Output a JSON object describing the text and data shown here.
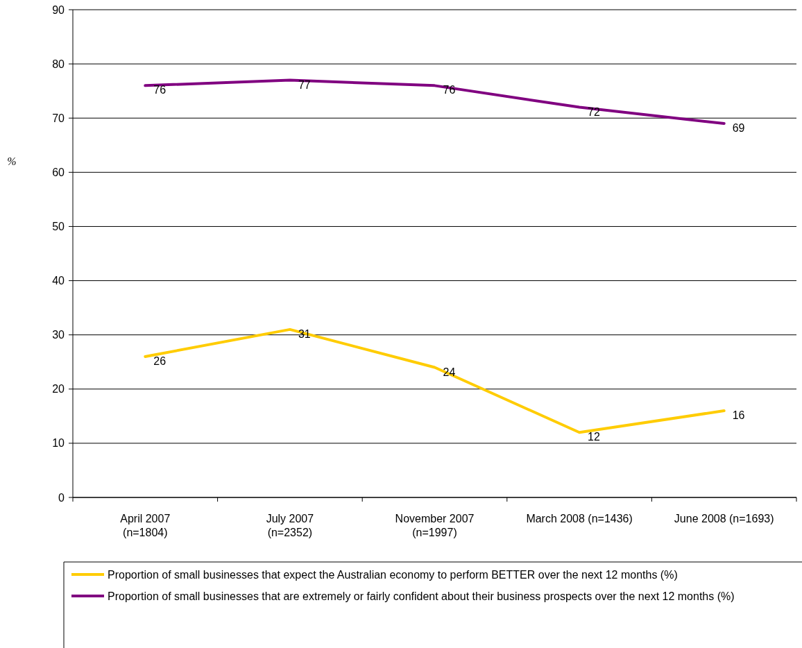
{
  "chart_data": {
    "type": "line",
    "ylabel": "%",
    "categories": [
      "April 2007\n(n=1804)",
      "July 2007\n(n=2352)",
      "November 2007\n(n=1997)",
      "March 2008 (n=1436)",
      "June 2008 (n=1693)"
    ],
    "series": [
      {
        "name": "Proportion of small businesses that expect the Australian economy to perform BETTER over the next 12 months (%)",
        "color": "#ffcc00",
        "values": [
          26,
          31,
          24,
          12,
          16
        ]
      },
      {
        "name": "Proportion of small businesses that are extremely or fairly confident about their business prospects over the next 12 months (%)",
        "color": "#800080",
        "values": [
          76,
          77,
          76,
          72,
          69
        ]
      }
    ],
    "ylim": [
      0,
      90
    ],
    "yticks": [
      0,
      10,
      20,
      30,
      40,
      50,
      60,
      70,
      80,
      90
    ],
    "grid": "y",
    "legend": "bottom",
    "data_labels": true,
    "marker": "none",
    "line_style": "solid"
  }
}
